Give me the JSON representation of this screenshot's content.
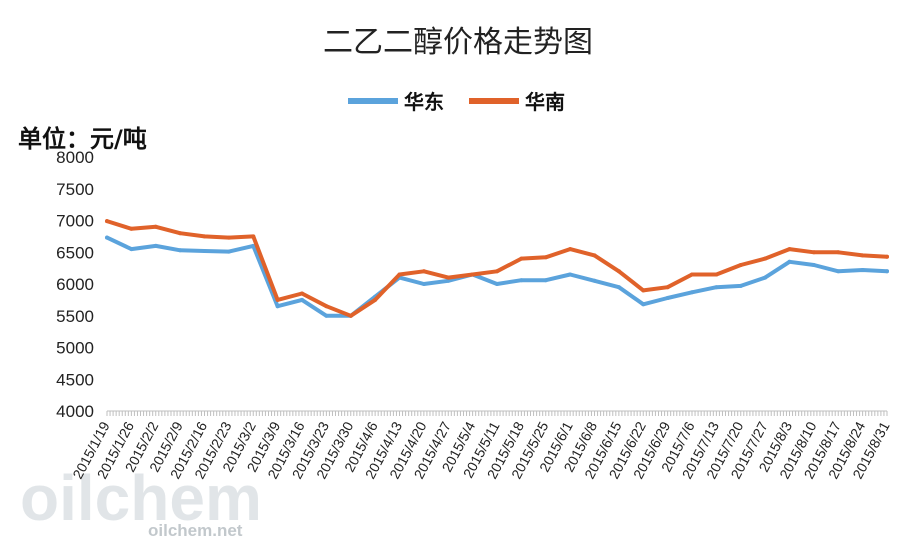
{
  "chart_data": {
    "type": "line",
    "title": "二乙二醇价格走势图",
    "unit_label": "单位：元/吨",
    "ylim": [
      4000,
      8000
    ],
    "yticks": [
      4000,
      4500,
      5000,
      5500,
      6000,
      6500,
      7000,
      7500,
      8000
    ],
    "grid": false,
    "legend_position": "top-center",
    "categories": [
      "2015/1/19",
      "2015/1/26",
      "2015/2/2",
      "2015/2/9",
      "2015/2/16",
      "2015/2/23",
      "2015/3/2",
      "2015/3/9",
      "2015/3/16",
      "2015/3/23",
      "2015/3/30",
      "2015/4/6",
      "2015/4/13",
      "2015/4/20",
      "2015/4/27",
      "2015/5/4",
      "2015/5/11",
      "2015/5/18",
      "2015/5/25",
      "2015/6/1",
      "2015/6/8",
      "2015/6/15",
      "2015/6/22",
      "2015/6/29",
      "2015/7/6",
      "2015/7/13",
      "2015/7/20",
      "2015/7/27",
      "2015/8/3",
      "2015/8/10",
      "2015/8/17",
      "2015/8/24",
      "2015/8/31"
    ],
    "x_axis_labels": [
      "2015/1/19",
      "2015/1/26",
      "2015/2/2",
      "2015/2/9",
      "2015/2/16",
      "2015/2/23",
      "2015/3/2",
      "2015/3/9",
      "2015/3/16",
      "2015/3/23",
      "2015/3/30",
      "2015/4/6",
      "2015/4/13",
      "2015/4/20",
      "2015/4/27",
      "2015/5/4",
      "2015/5/11",
      "2015/5/18",
      "2015/5/25",
      "2015/6/1",
      "2015/6/8",
      "2015/6/15",
      "2015/6/22",
      "2015/6/29",
      "2015/7/6",
      "2015/7/13",
      "2015/7/20",
      "2015/7/27",
      "2015/8/3",
      "2015/8/10",
      "2015/8/17",
      "2015/8/24",
      "2015/8/31"
    ],
    "series": [
      {
        "name": "华东",
        "color": "#5ba3dc",
        "values": [
          6730,
          6550,
          6600,
          6530,
          6520,
          6510,
          6600,
          5650,
          5750,
          5500,
          5500,
          5800,
          6100,
          6000,
          6050,
          6150,
          6000,
          6060,
          6060,
          6150,
          6050,
          5950,
          5680,
          5780,
          5870,
          5950,
          5970,
          6100,
          6350,
          6300,
          6200,
          6220,
          6200
        ]
      },
      {
        "name": "华南",
        "color": "#e0622a",
        "values": [
          6990,
          6870,
          6900,
          6800,
          6750,
          6730,
          6750,
          5750,
          5850,
          5650,
          5500,
          5750,
          6150,
          6200,
          6100,
          6150,
          6200,
          6400,
          6420,
          6550,
          6450,
          6200,
          5900,
          5950,
          6150,
          6150,
          6300,
          6400,
          6550,
          6500,
          6500,
          6450,
          6430
        ]
      }
    ]
  },
  "watermark": {
    "logo_text": "oilchem",
    "site_text": "oilchem.net"
  }
}
